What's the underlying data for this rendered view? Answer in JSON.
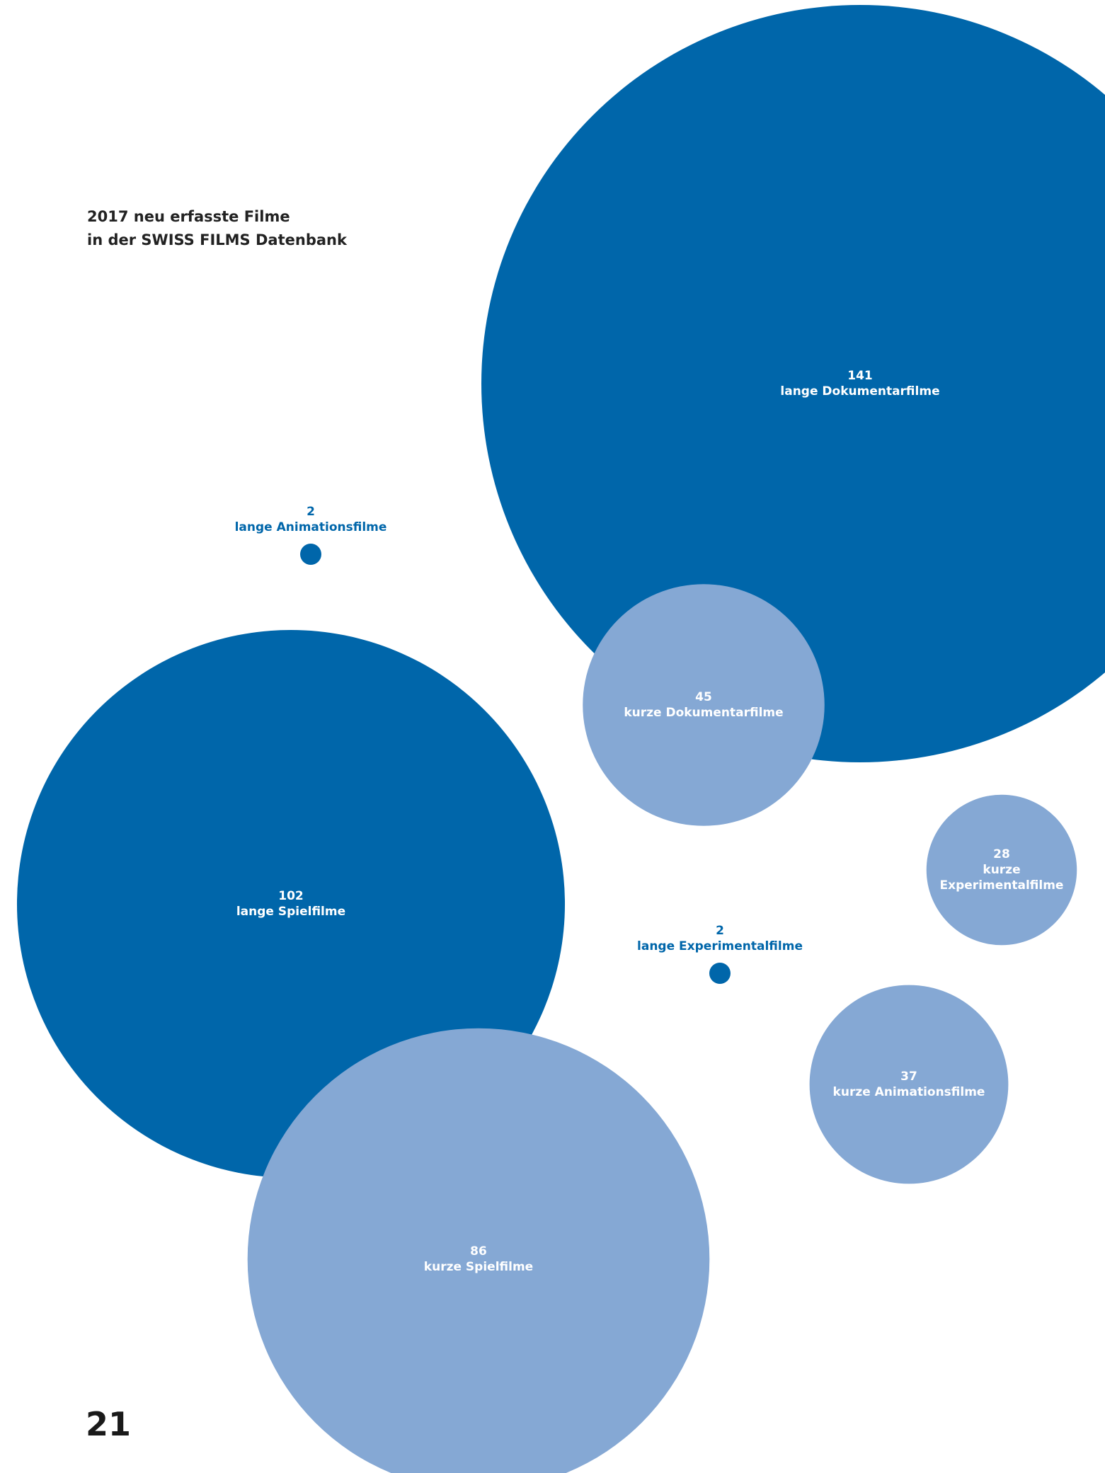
{
  "chart_data": {
    "type": "bubble",
    "title": [
      "2017 neu erfasste Filme",
      "in der SWISS FILMS Datenbank"
    ],
    "categories": [
      "lange Dokumentarfilme",
      "kurze Dokumentarfilme",
      "lange Animationsfilme",
      "lange Spielfilme",
      "kurze Spielfilme",
      "lange Experimentalfilme",
      "kurze Experimentalfilme",
      "kurze Animationsfilme"
    ],
    "values": [
      141,
      45,
      2,
      102,
      86,
      2,
      28,
      37
    ],
    "colors": [
      "#0066aa",
      "#85a8d4",
      "#0066aa",
      "#0066aa",
      "#85a8d4",
      "#0066aa",
      "#85a8d4",
      "#85a8d4"
    ]
  },
  "page_number": "21"
}
